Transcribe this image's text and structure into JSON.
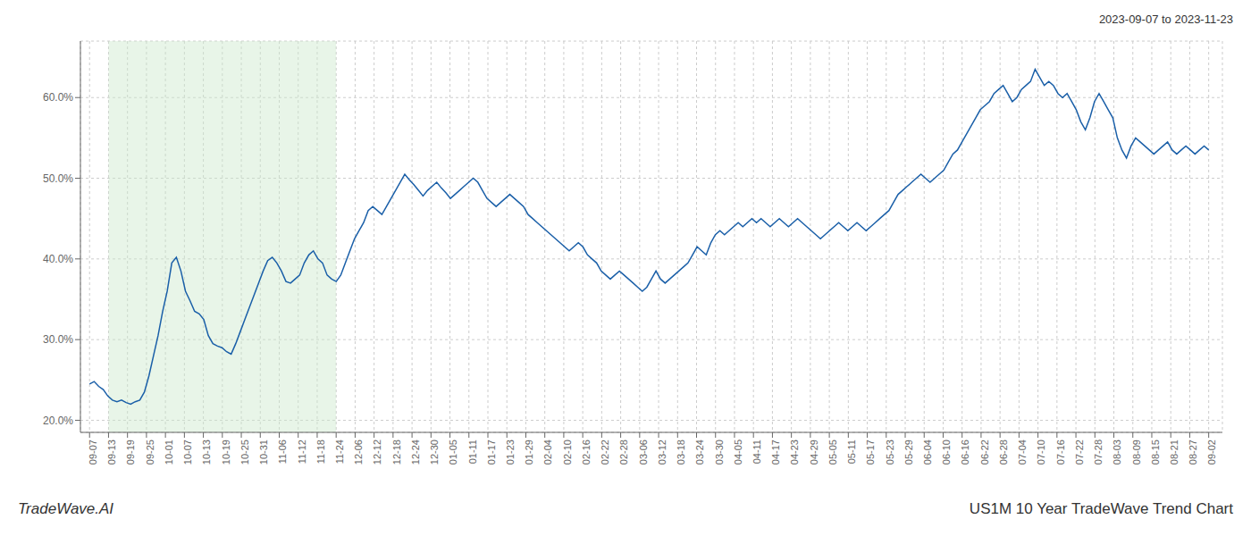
{
  "chart_data": {
    "type": "line",
    "title": "2023-09-07 to 2023-11-23",
    "annotations": [
      "TradeWave.AI",
      "US1M 10 Year TradeWave Trend Chart"
    ],
    "grid": true,
    "color": "#1a5fa8",
    "highlight": {
      "x": [
        4.152542,
        53.983051
      ],
      "color": "#cce8cc"
    },
    "xlim": [
      -2,
      248
    ],
    "xticks": [
      {
        "value": 0,
        "label": "09-07"
      },
      {
        "value": 4.152542,
        "label": "09-13"
      },
      {
        "value": 8.305085,
        "label": "09-19"
      },
      {
        "value": 12.457627,
        "label": "09-25"
      },
      {
        "value": 16.610169,
        "label": "10-01"
      },
      {
        "value": 20.762712,
        "label": "10-07"
      },
      {
        "value": 24.915254,
        "label": "10-13"
      },
      {
        "value": 29.067797,
        "label": "10-19"
      },
      {
        "value": 33.220339,
        "label": "10-25"
      },
      {
        "value": 37.372881,
        "label": "10-31"
      },
      {
        "value": 41.525424,
        "label": "11-06"
      },
      {
        "value": 45.677966,
        "label": "11-12"
      },
      {
        "value": 49.830508,
        "label": "11-18"
      },
      {
        "value": 53.983051,
        "label": "11-24"
      },
      {
        "value": 58.135593,
        "label": "12-06"
      },
      {
        "value": 62.288136,
        "label": "12-12"
      },
      {
        "value": 66.440678,
        "label": "12-18"
      },
      {
        "value": 70.59322,
        "label": "12-24"
      },
      {
        "value": 74.745763,
        "label": "12-30"
      },
      {
        "value": 78.898305,
        "label": "01-05"
      },
      {
        "value": 83.050847,
        "label": "01-11"
      },
      {
        "value": 87.20339,
        "label": "01-17"
      },
      {
        "value": 91.355932,
        "label": "01-23"
      },
      {
        "value": 95.508475,
        "label": "01-29"
      },
      {
        "value": 99.661017,
        "label": "02-04"
      },
      {
        "value": 103.813559,
        "label": "02-10"
      },
      {
        "value": 107.966102,
        "label": "02-16"
      },
      {
        "value": 112.118644,
        "label": "02-22"
      },
      {
        "value": 116.271186,
        "label": "02-28"
      },
      {
        "value": 120.423729,
        "label": "03-06"
      },
      {
        "value": 124.576271,
        "label": "03-12"
      },
      {
        "value": 128.728814,
        "label": "03-18"
      },
      {
        "value": 132.881356,
        "label": "03-24"
      },
      {
        "value": 137.033898,
        "label": "03-30"
      },
      {
        "value": 141.186441,
        "label": "04-05"
      },
      {
        "value": 145.338983,
        "label": "04-11"
      },
      {
        "value": 149.491525,
        "label": "04-17"
      },
      {
        "value": 153.644068,
        "label": "04-23"
      },
      {
        "value": 157.79661,
        "label": "04-29"
      },
      {
        "value": 161.949153,
        "label": "05-05"
      },
      {
        "value": 166.101695,
        "label": "05-11"
      },
      {
        "value": 170.254237,
        "label": "05-17"
      },
      {
        "value": 174.40678,
        "label": "05-23"
      },
      {
        "value": 178.559322,
        "label": "05-29"
      },
      {
        "value": 182.711864,
        "label": "06-04"
      },
      {
        "value": 186.864407,
        "label": "06-10"
      },
      {
        "value": 191.016949,
        "label": "06-16"
      },
      {
        "value": 195.169492,
        "label": "06-22"
      },
      {
        "value": 199.322034,
        "label": "06-28"
      },
      {
        "value": 203.474576,
        "label": "07-04"
      },
      {
        "value": 207.627119,
        "label": "07-10"
      },
      {
        "value": 211.779661,
        "label": "07-16"
      },
      {
        "value": 215.932203,
        "label": "07-22"
      },
      {
        "value": 220.084746,
        "label": "07-28"
      },
      {
        "value": 224.237288,
        "label": "08-03"
      },
      {
        "value": 228.389831,
        "label": "08-09"
      },
      {
        "value": 232.542373,
        "label": "08-15"
      },
      {
        "value": 236.694915,
        "label": "08-21"
      },
      {
        "value": 240.847458,
        "label": "08-27"
      },
      {
        "value": 245,
        "label": "09-02"
      }
    ],
    "ylim": [
      18.5,
      67.0
    ],
    "yticks": [
      {
        "value": 20.0,
        "label": "20.0%"
      },
      {
        "value": 30.0,
        "label": "30.0%"
      },
      {
        "value": 40.0,
        "label": "40.0%"
      },
      {
        "value": 50.0,
        "label": "50.0%"
      },
      {
        "value": 60.0,
        "label": "60.0%"
      }
    ],
    "x": [
      0,
      1,
      2,
      3,
      4,
      5,
      6,
      7,
      8,
      9,
      10,
      11,
      12,
      13,
      14,
      15,
      16,
      17,
      18,
      19,
      20,
      21,
      22,
      23,
      24,
      25,
      26,
      27,
      28,
      29,
      30,
      31,
      32,
      33,
      34,
      35,
      36,
      37,
      38,
      39,
      40,
      41,
      42,
      43,
      44,
      45,
      46,
      47,
      48,
      49,
      50,
      51,
      52,
      53,
      54,
      55,
      56,
      57,
      58,
      59,
      60,
      61,
      62,
      63,
      64,
      65,
      66,
      67,
      68,
      69,
      70,
      71,
      72,
      73,
      74,
      75,
      76,
      77,
      78,
      79,
      80,
      81,
      82,
      83,
      84,
      85,
      86,
      87,
      88,
      89,
      90,
      91,
      92,
      93,
      94,
      95,
      96,
      97,
      98,
      99,
      100,
      101,
      102,
      103,
      104,
      105,
      106,
      107,
      108,
      109,
      110,
      111,
      112,
      113,
      114,
      115,
      116,
      117,
      118,
      119,
      120,
      121,
      122,
      123,
      124,
      125,
      126,
      127,
      128,
      129,
      130,
      131,
      132,
      133,
      134,
      135,
      136,
      137,
      138,
      139,
      140,
      141,
      142,
      143,
      144,
      145,
      146,
      147,
      148,
      149,
      150,
      151,
      152,
      153,
      154,
      155,
      156,
      157,
      158,
      159,
      160,
      161,
      162,
      163,
      164,
      165,
      166,
      167,
      168,
      169,
      170,
      171,
      172,
      173,
      174,
      175,
      176,
      177,
      178,
      179,
      180,
      181,
      182,
      183,
      184,
      185,
      186,
      187,
      188,
      189,
      190,
      191,
      192,
      193,
      194,
      195,
      196,
      197,
      198,
      199,
      200,
      201,
      202,
      203,
      204,
      205,
      206,
      207,
      208,
      209,
      210,
      211,
      212,
      213,
      214,
      215,
      216,
      217,
      218,
      219,
      220,
      221,
      222,
      223,
      224,
      225,
      226,
      227,
      228,
      229,
      230,
      231,
      232,
      233,
      234,
      235,
      236,
      237,
      238,
      239,
      240,
      241,
      242,
      243,
      244,
      245
    ],
    "values": [
      24.5,
      24.8,
      24.2,
      23.8,
      23.0,
      22.5,
      22.3,
      22.5,
      22.2,
      22.0,
      22.3,
      22.5,
      23.5,
      25.5,
      28.0,
      30.5,
      33.5,
      36.0,
      39.5,
      40.2,
      38.5,
      36.0,
      34.8,
      33.5,
      33.2,
      32.5,
      30.5,
      29.5,
      29.2,
      29.0,
      28.5,
      28.2,
      29.5,
      31.0,
      32.5,
      34.0,
      35.5,
      37.0,
      38.5,
      39.8,
      40.2,
      39.5,
      38.5,
      37.2,
      37.0,
      37.5,
      38.0,
      39.5,
      40.5,
      41.0,
      40.0,
      39.5,
      38.0,
      37.5,
      37.2,
      38.0,
      39.5,
      41.0,
      42.5,
      43.5,
      44.5,
      46.0,
      46.5,
      46.0,
      45.5,
      46.5,
      47.5,
      48.5,
      49.5,
      50.5,
      49.8,
      49.2,
      48.5,
      47.8,
      48.5,
      49.0,
      49.5,
      48.8,
      48.2,
      47.5,
      48.0,
      48.5,
      49.0,
      49.5,
      50.0,
      49.5,
      48.5,
      47.5,
      47.0,
      46.5,
      47.0,
      47.5,
      48.0,
      47.5,
      47.0,
      46.5,
      45.5,
      45.0,
      44.5,
      44.0,
      43.5,
      43.0,
      42.5,
      42.0,
      41.5,
      41.0,
      41.5,
      42.0,
      41.5,
      40.5,
      40.0,
      39.5,
      38.5,
      38.0,
      37.5,
      38.0,
      38.5,
      38.0,
      37.5,
      37.0,
      36.5,
      36.0,
      36.5,
      37.5,
      38.5,
      37.5,
      37.0,
      37.5,
      38.0,
      38.5,
      39.0,
      39.5,
      40.5,
      41.5,
      41.0,
      40.5,
      42.0,
      43.0,
      43.5,
      43.0,
      43.5,
      44.0,
      44.5,
      44.0,
      44.5,
      45.0,
      44.5,
      45.0,
      44.5,
      44.0,
      44.5,
      45.0,
      44.5,
      44.0,
      44.5,
      45.0,
      44.5,
      44.0,
      43.5,
      43.0,
      42.5,
      43.0,
      43.5,
      44.0,
      44.5,
      44.0,
      43.5,
      44.0,
      44.5,
      44.0,
      43.5,
      44.0,
      44.5,
      45.0,
      45.5,
      46.0,
      47.0,
      48.0,
      48.5,
      49.0,
      49.5,
      50.0,
      50.5,
      50.0,
      49.5,
      50.0,
      50.5,
      51.0,
      52.0,
      53.0,
      53.5,
      54.5,
      55.5,
      56.5,
      57.5,
      58.5,
      59.0,
      59.5,
      60.5,
      61.0,
      61.5,
      60.5,
      59.5,
      60.0,
      61.0,
      61.5,
      62.0,
      63.5,
      62.5,
      61.5,
      62.0,
      61.5,
      60.5,
      60.0,
      60.5,
      59.5,
      58.5,
      57.0,
      56.0,
      57.5,
      59.5,
      60.5,
      59.5,
      58.5,
      57.5,
      55.0,
      53.5,
      52.5,
      54.0,
      55.0,
      54.5,
      54.0,
      53.5,
      53.0,
      53.5,
      54.0,
      54.5,
      53.5,
      53.0,
      53.5,
      54.0,
      53.5,
      53.0,
      53.5,
      54.0,
      53.5
    ]
  }
}
